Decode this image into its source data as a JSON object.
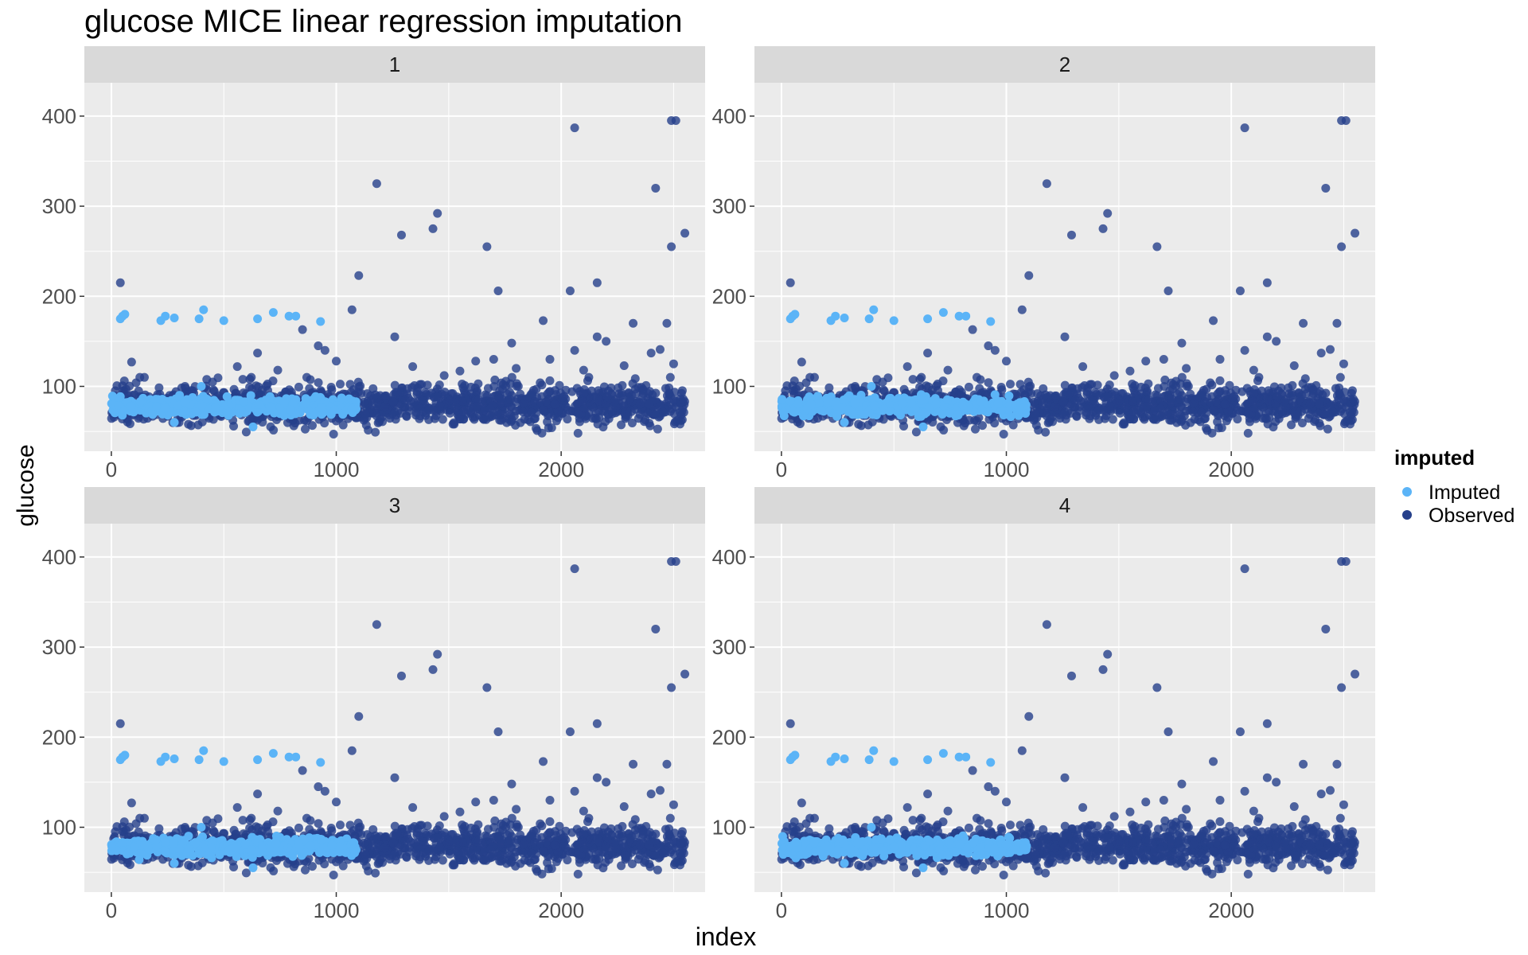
{
  "title": "glucose MICE linear regression imputation",
  "xlabel": "index",
  "ylabel": "glucose",
  "legend": {
    "title": "imputed",
    "items": [
      {
        "label": "Imputed",
        "color": "#5BB4F7"
      },
      {
        "label": "Observed",
        "color": "#26408B"
      }
    ]
  },
  "colors": {
    "panel_bg": "#EBEBEB",
    "strip_bg": "#D9D9D9",
    "grid": "#FFFFFF",
    "imputed": "#5BB4F7",
    "observed": "#26408B"
  },
  "chart_data": {
    "type": "scatter",
    "facet_by": "imputation",
    "panels": [
      "1",
      "2",
      "3",
      "4"
    ],
    "xlim": [
      -120,
      2640
    ],
    "ylim": [
      28,
      437
    ],
    "x_ticks": [
      0,
      1000,
      2000
    ],
    "y_ticks": [
      100,
      200,
      300,
      400
    ],
    "observed_outliers": [
      [
        40,
        215
      ],
      [
        1180,
        325
      ],
      [
        2060,
        387
      ],
      [
        2490,
        395
      ],
      [
        2510,
        395
      ],
      [
        1290,
        268
      ],
      [
        1430,
        275
      ],
      [
        1450,
        292
      ],
      [
        1670,
        255
      ],
      [
        2420,
        320
      ],
      [
        2490,
        255
      ],
      [
        2550,
        270
      ],
      [
        1100,
        223
      ],
      [
        1070,
        185
      ],
      [
        1720,
        206
      ],
      [
        2040,
        206
      ],
      [
        2160,
        215
      ],
      [
        1920,
        173
      ],
      [
        2320,
        170
      ],
      [
        2470,
        170
      ],
      [
        1260,
        155
      ],
      [
        2160,
        155
      ],
      [
        2200,
        150
      ],
      [
        1780,
        148
      ],
      [
        950,
        140
      ],
      [
        1620,
        128
      ],
      [
        2060,
        140
      ],
      [
        2400,
        137
      ],
      [
        2440,
        141
      ],
      [
        2500,
        125
      ],
      [
        650,
        137
      ],
      [
        850,
        163
      ],
      [
        920,
        145
      ],
      [
        1000,
        128
      ],
      [
        1340,
        122
      ],
      [
        1480,
        112
      ],
      [
        1700,
        130
      ],
      [
        1800,
        120
      ],
      [
        1950,
        130
      ],
      [
        2100,
        118
      ],
      [
        2280,
        123
      ],
      [
        90,
        127
      ],
      [
        560,
        122
      ],
      [
        740,
        118
      ],
      [
        1550,
        117
      ]
    ],
    "imputed_outliers": [
      [
        40,
        175
      ],
      [
        50,
        178
      ],
      [
        60,
        180
      ],
      [
        220,
        173
      ],
      [
        240,
        178
      ],
      [
        280,
        176
      ],
      [
        390,
        175
      ],
      [
        410,
        185
      ],
      [
        500,
        173
      ],
      [
        650,
        175
      ],
      [
        720,
        182
      ],
      [
        790,
        178
      ],
      [
        820,
        178
      ],
      [
        930,
        172
      ],
      [
        630,
        55
      ],
      [
        280,
        60
      ],
      [
        400,
        100
      ]
    ],
    "bulk": {
      "observed_index_range": [
        0,
        2550
      ],
      "imputed_index_range": [
        0,
        1090
      ],
      "typical_glucose_range": [
        55,
        105
      ],
      "center": 80
    }
  }
}
